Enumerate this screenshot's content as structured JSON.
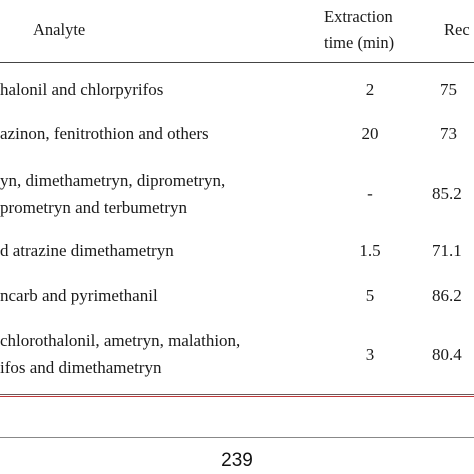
{
  "table": {
    "headers": {
      "analyte": "Analyte",
      "extraction_time_line1": "Extraction",
      "extraction_time_line2": "time (min)",
      "recovery_partial": "Rec"
    },
    "rows": [
      {
        "analyte_lines": [
          "halonil and chlorpyrifos"
        ],
        "time": "2",
        "recovery": "75"
      },
      {
        "analyte_lines": [
          "azinon, fenitrothion and others"
        ],
        "time": "20",
        "recovery": "73"
      },
      {
        "analyte_lines": [
          "yn, dimethametryn, diprometryn,",
          "prometryn and terbumetryn"
        ],
        "time": "-",
        "recovery": "85.2"
      },
      {
        "analyte_lines": [
          "d atrazine dimethametryn"
        ],
        "time": "1.5",
        "recovery": "71.1"
      },
      {
        "analyte_lines": [
          "ncarb and pyrimethanil"
        ],
        "time": "5",
        "recovery": "86.2"
      },
      {
        "analyte_lines": [
          "chlorothalonil, ametryn, malathion,",
          "ifos and dimethametryn"
        ],
        "time": "3",
        "recovery": "80.4"
      }
    ]
  },
  "footer": {
    "page_number": "239"
  }
}
